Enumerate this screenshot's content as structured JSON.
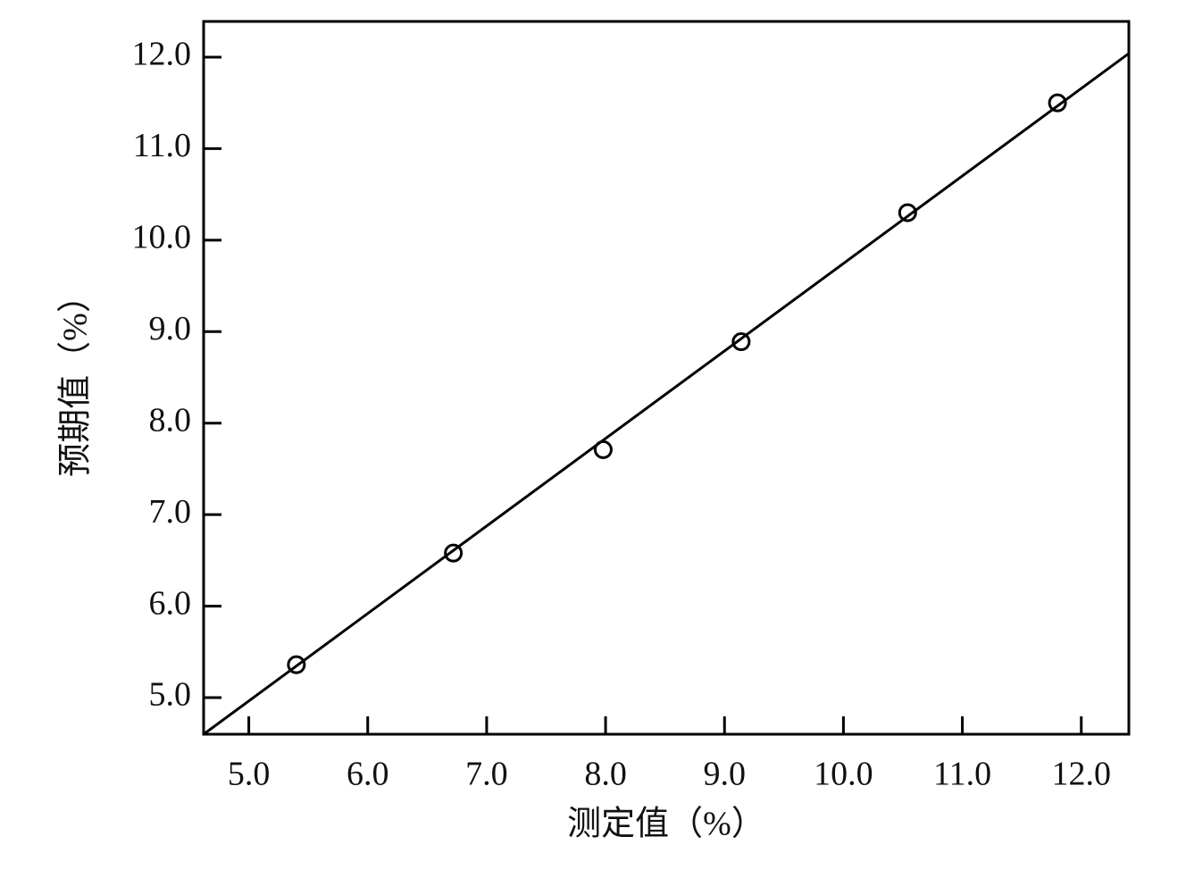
{
  "chart_data": {
    "type": "scatter",
    "x_label": "测定值（%）",
    "y_label": "预期值（%）",
    "series": [
      {
        "color": "#000000",
        "x": [
          5.4,
          6.72,
          7.98,
          9.14,
          10.54,
          11.8
        ],
        "values": [
          5.36,
          6.58,
          7.71,
          8.89,
          10.3,
          11.5
        ]
      }
    ],
    "fit_line": {
      "color": "#000000",
      "x": [
        4.62,
        12.4
      ],
      "values": [
        4.6,
        12.04
      ]
    },
    "xlim": [
      4.62,
      12.4
    ],
    "ylim": [
      4.6,
      12.39
    ],
    "xticks": [
      {
        "value": 5,
        "label": "5.0"
      },
      {
        "value": 6,
        "label": "6.0"
      },
      {
        "value": 7,
        "label": "7.0"
      },
      {
        "value": 8,
        "label": "8.0"
      },
      {
        "value": 9,
        "label": "9.0"
      },
      {
        "value": 10,
        "label": "10.0"
      },
      {
        "value": 11,
        "label": "11.0"
      },
      {
        "value": 12,
        "label": "12.0"
      }
    ],
    "yticks": [
      {
        "value": 5,
        "label": "5.0"
      },
      {
        "value": 6,
        "label": "6.0"
      },
      {
        "value": 7,
        "label": "7.0"
      },
      {
        "value": 8,
        "label": "8.0"
      },
      {
        "value": 9,
        "label": "9.0"
      },
      {
        "value": 10,
        "label": "10.0"
      },
      {
        "value": 11,
        "label": "11.0"
      },
      {
        "value": 12,
        "label": "12.0"
      }
    ],
    "grid": false
  }
}
